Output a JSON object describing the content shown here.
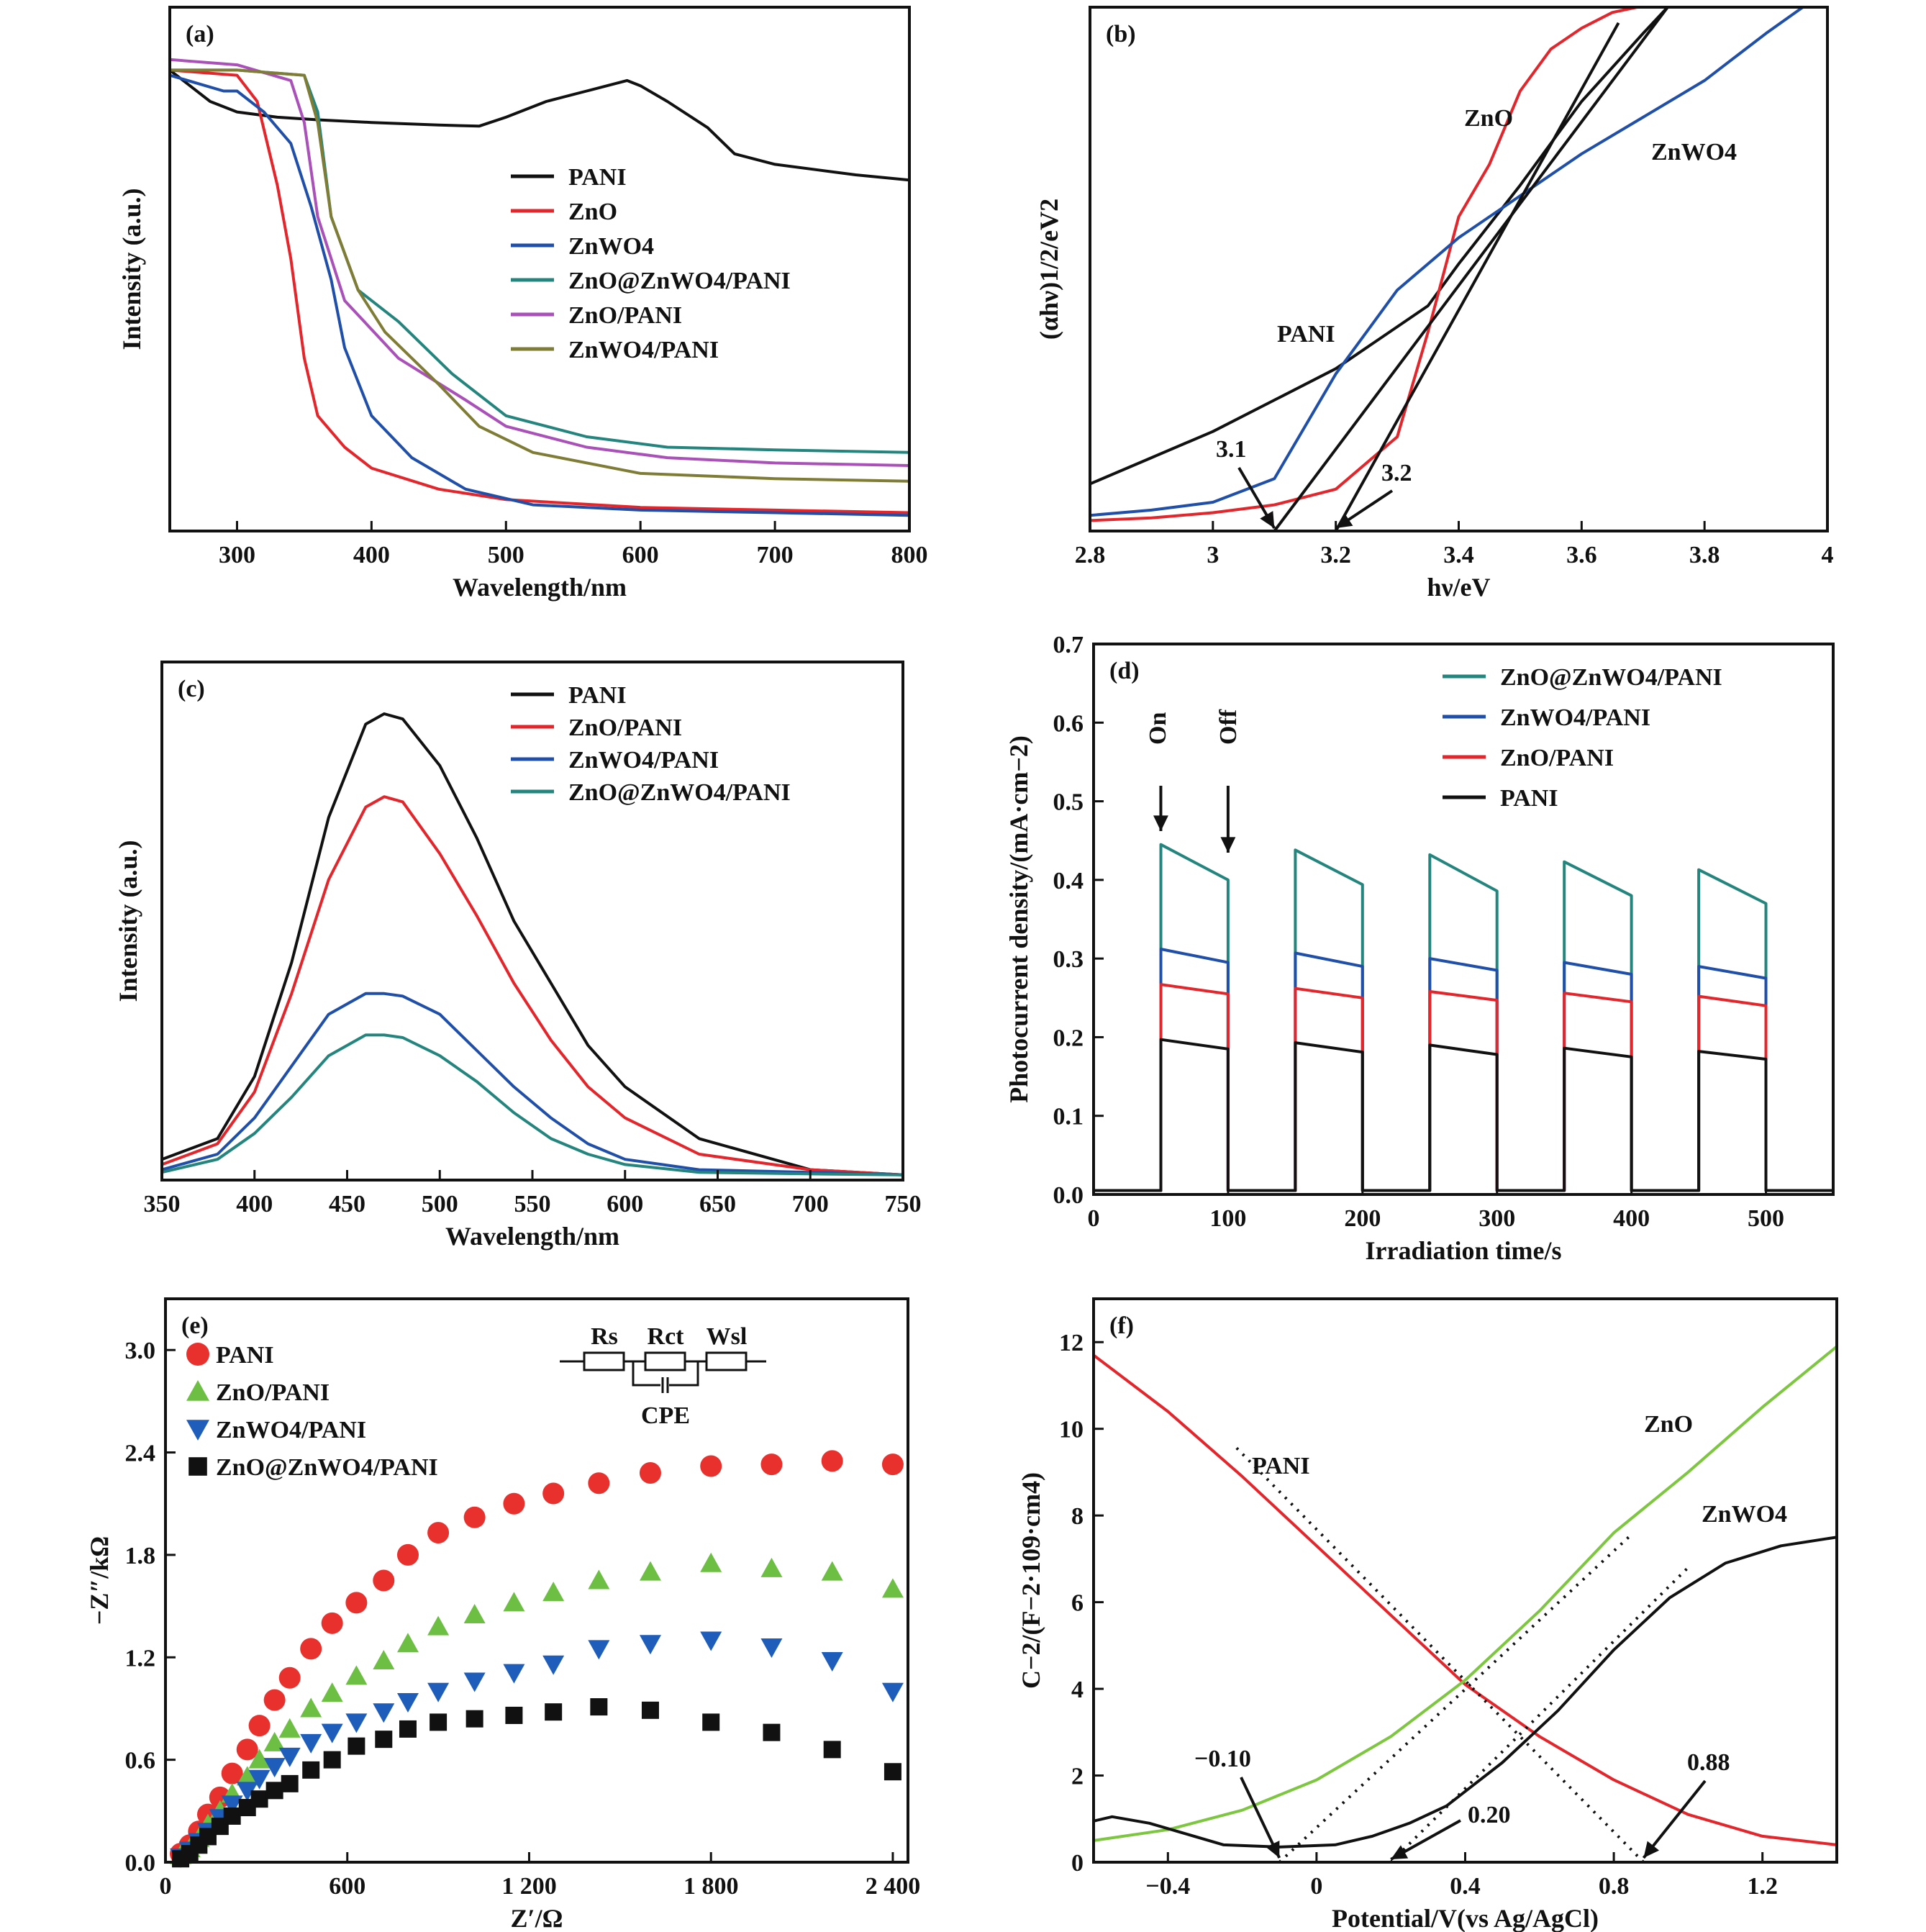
{
  "panels": {
    "a": {
      "label": "(a)",
      "xlabel": "Wavelength/nm",
      "ylabel": "Intensity (a.u.)"
    },
    "b": {
      "label": "(b)",
      "xlabel": "hν/eV",
      "ylabel": "(αhν)1/2/eV2",
      "annotations": [
        "ZnO",
        "ZnWO4",
        "PANI",
        "3.1",
        "3.2"
      ]
    },
    "c": {
      "label": "(c)",
      "xlabel": "Wavelength/nm",
      "ylabel": "Intensity (a.u.)"
    },
    "d": {
      "label": "(d)",
      "xlabel": "Irradiation time/s",
      "ylabel": "Photocurrent density/(mA·cm−2)",
      "annotations": [
        "On",
        "Off"
      ]
    },
    "e": {
      "label": "(e)",
      "xlabel": "Z′/Ω",
      "ylabel": "−Z″/kΩ",
      "circuit": [
        "Rs",
        "Rct",
        "Wsl",
        "CPE"
      ]
    },
    "f": {
      "label": "(f)",
      "xlabel": "Potential/V(vs Ag/AgCl)",
      "ylabel": "C−2/(F−2·109·cm4)",
      "annotations": [
        "PANI",
        "ZnO",
        "ZnWO4",
        "−0.10",
        "0.20",
        "0.88"
      ]
    }
  },
  "chart_data": [
    {
      "panel": "a",
      "type": "line",
      "xlim": [
        250,
        800
      ],
      "ylim": [
        0,
        1
      ],
      "xticks": [
        300,
        400,
        500,
        600,
        700,
        800
      ],
      "legend_position": "center-right",
      "series": [
        {
          "name": "PANI",
          "color": "#111111",
          "x": [
            250,
            260,
            280,
            300,
            330,
            360,
            400,
            450,
            480,
            500,
            530,
            560,
            590,
            600,
            620,
            650,
            670,
            700,
            730,
            760,
            800
          ],
          "y": [
            0.88,
            0.86,
            0.82,
            0.8,
            0.79,
            0.785,
            0.78,
            0.775,
            0.773,
            0.79,
            0.82,
            0.84,
            0.86,
            0.85,
            0.82,
            0.77,
            0.72,
            0.7,
            0.69,
            0.68,
            0.67
          ]
        },
        {
          "name": "ZnO",
          "color": "#e3262b",
          "x": [
            250,
            300,
            315,
            330,
            340,
            350,
            360,
            380,
            400,
            450,
            500,
            600,
            700,
            800
          ],
          "y": [
            0.88,
            0.87,
            0.82,
            0.66,
            0.52,
            0.33,
            0.22,
            0.16,
            0.12,
            0.08,
            0.06,
            0.045,
            0.04,
            0.035
          ]
        },
        {
          "name": "ZnWO4",
          "color": "#1f4fa8",
          "x": [
            250,
            290,
            300,
            320,
            340,
            355,
            370,
            380,
            400,
            430,
            470,
            520,
            600,
            700,
            800
          ],
          "y": [
            0.87,
            0.84,
            0.84,
            0.8,
            0.74,
            0.62,
            0.48,
            0.35,
            0.22,
            0.14,
            0.08,
            0.05,
            0.04,
            0.035,
            0.03
          ]
        },
        {
          "name": "ZnO@ZnWO4/PANI",
          "color": "#23857d",
          "x": [
            250,
            300,
            350,
            360,
            370,
            390,
            420,
            460,
            500,
            560,
            620,
            700,
            800
          ],
          "y": [
            0.88,
            0.88,
            0.87,
            0.8,
            0.6,
            0.46,
            0.4,
            0.3,
            0.22,
            0.18,
            0.16,
            0.155,
            0.15
          ]
        },
        {
          "name": "ZnO/PANI",
          "color": "#a951b8",
          "x": [
            250,
            300,
            340,
            350,
            360,
            380,
            420,
            470,
            500,
            560,
            620,
            700,
            800
          ],
          "y": [
            0.9,
            0.89,
            0.86,
            0.78,
            0.6,
            0.44,
            0.33,
            0.25,
            0.2,
            0.16,
            0.14,
            0.13,
            0.125
          ]
        },
        {
          "name": "ZnWO4/PANI",
          "color": "#7f7c35",
          "x": [
            250,
            300,
            350,
            360,
            370,
            390,
            410,
            450,
            480,
            520,
            600,
            700,
            800
          ],
          "y": [
            0.88,
            0.88,
            0.87,
            0.78,
            0.6,
            0.46,
            0.38,
            0.28,
            0.2,
            0.15,
            0.11,
            0.1,
            0.095
          ]
        }
      ]
    },
    {
      "panel": "b",
      "type": "line",
      "xlim": [
        2.8,
        4.0
      ],
      "ylim": [
        0,
        1
      ],
      "xticks": [
        2.8,
        3.0,
        3.2,
        3.4,
        3.6,
        3.8,
        4.0
      ],
      "series": [
        {
          "name": "PANI",
          "color": "#111111",
          "x": [
            2.8,
            2.9,
            3.0,
            3.1,
            3.2,
            3.3,
            3.35,
            3.4,
            3.5,
            3.6,
            3.7,
            3.74
          ],
          "y": [
            0.09,
            0.14,
            0.19,
            0.25,
            0.31,
            0.39,
            0.43,
            0.51,
            0.66,
            0.82,
            0.95,
            1.0
          ]
        },
        {
          "name": "ZnO",
          "color": "#e3262b",
          "x": [
            2.8,
            2.9,
            3.0,
            3.1,
            3.2,
            3.3,
            3.35,
            3.4,
            3.45,
            3.5,
            3.55,
            3.6,
            3.65,
            3.69
          ],
          "y": [
            0.02,
            0.025,
            0.035,
            0.05,
            0.08,
            0.18,
            0.38,
            0.6,
            0.7,
            0.84,
            0.92,
            0.96,
            0.99,
            1.0
          ]
        },
        {
          "name": "ZnWO4",
          "color": "#1f4fa8",
          "x": [
            2.8,
            2.9,
            3.0,
            3.1,
            3.2,
            3.3,
            3.4,
            3.5,
            3.6,
            3.7,
            3.8,
            3.9,
            3.96
          ],
          "y": [
            0.03,
            0.04,
            0.055,
            0.1,
            0.3,
            0.46,
            0.56,
            0.64,
            0.72,
            0.79,
            0.86,
            0.95,
            1.0
          ]
        }
      ]
    },
    {
      "panel": "c",
      "type": "line",
      "xlim": [
        350,
        750
      ],
      "ylim": [
        0,
        1
      ],
      "xticks": [
        350,
        400,
        450,
        500,
        550,
        600,
        650,
        700,
        750
      ],
      "legend_position": "top-right",
      "series": [
        {
          "name": "PANI",
          "color": "#111111",
          "x": [
            350,
            380,
            400,
            420,
            440,
            460,
            470,
            480,
            500,
            520,
            540,
            560,
            580,
            600,
            640,
            680,
            700,
            750
          ],
          "y": [
            0.04,
            0.08,
            0.2,
            0.42,
            0.7,
            0.88,
            0.9,
            0.89,
            0.8,
            0.66,
            0.5,
            0.38,
            0.26,
            0.18,
            0.08,
            0.04,
            0.02,
            0.01
          ]
        },
        {
          "name": "ZnO/PANI",
          "color": "#e3262b",
          "x": [
            350,
            380,
            400,
            420,
            440,
            460,
            470,
            480,
            500,
            520,
            540,
            560,
            580,
            600,
            640,
            680,
            700,
            750
          ],
          "y": [
            0.03,
            0.07,
            0.17,
            0.36,
            0.58,
            0.72,
            0.74,
            0.73,
            0.63,
            0.51,
            0.38,
            0.27,
            0.18,
            0.12,
            0.05,
            0.03,
            0.02,
            0.01
          ]
        },
        {
          "name": "ZnWO4/PANI",
          "color": "#1f4fa8",
          "x": [
            350,
            380,
            400,
            420,
            440,
            460,
            470,
            480,
            500,
            520,
            540,
            560,
            580,
            600,
            640,
            700,
            750
          ],
          "y": [
            0.02,
            0.05,
            0.12,
            0.22,
            0.32,
            0.36,
            0.36,
            0.355,
            0.32,
            0.25,
            0.18,
            0.12,
            0.07,
            0.04,
            0.02,
            0.015,
            0.01
          ]
        },
        {
          "name": "ZnO@ZnWO4/PANI",
          "color": "#23857d",
          "x": [
            350,
            380,
            400,
            420,
            440,
            460,
            470,
            480,
            500,
            520,
            540,
            560,
            580,
            600,
            640,
            700,
            750
          ],
          "y": [
            0.015,
            0.04,
            0.09,
            0.16,
            0.24,
            0.28,
            0.28,
            0.275,
            0.24,
            0.19,
            0.13,
            0.08,
            0.05,
            0.03,
            0.015,
            0.012,
            0.01
          ]
        }
      ]
    },
    {
      "panel": "d",
      "type": "line",
      "xlim": [
        0,
        550
      ],
      "ylim": [
        0,
        0.7
      ],
      "xticks": [
        0,
        100,
        200,
        300,
        400,
        500
      ],
      "yticks": [
        0,
        0.1,
        0.2,
        0.3,
        0.4,
        0.5,
        0.6,
        0.7
      ],
      "legend_position": "top-right",
      "on_intervals": [
        [
          50,
          100
        ],
        [
          150,
          200
        ],
        [
          250,
          300
        ],
        [
          350,
          400
        ],
        [
          450,
          500
        ]
      ],
      "series": [
        {
          "name": "ZnO@ZnWO4/PANI",
          "color": "#23857d",
          "peak": [
            0.445,
            0.438,
            0.432,
            0.423,
            0.413
          ],
          "end": [
            0.4,
            0.394,
            0.386,
            0.38,
            0.37
          ],
          "dark": 0.005
        },
        {
          "name": "ZnWO4/PANI",
          "color": "#1f4fa8",
          "peak": [
            0.312,
            0.307,
            0.3,
            0.295,
            0.29
          ],
          "end": [
            0.295,
            0.29,
            0.285,
            0.28,
            0.275
          ],
          "dark": 0.005
        },
        {
          "name": "ZnO/PANI",
          "color": "#e3262b",
          "peak": [
            0.267,
            0.262,
            0.258,
            0.256,
            0.252
          ],
          "end": [
            0.255,
            0.25,
            0.247,
            0.245,
            0.24
          ],
          "dark": 0.005
        },
        {
          "name": "PANI",
          "color": "#111111",
          "peak": [
            0.197,
            0.193,
            0.19,
            0.186,
            0.182
          ],
          "end": [
            0.185,
            0.181,
            0.178,
            0.175,
            0.172
          ],
          "dark": 0.005
        }
      ]
    },
    {
      "panel": "e",
      "type": "scatter",
      "xlim": [
        0,
        2450
      ],
      "ylim": [
        0,
        3.3
      ],
      "xticks": [
        0,
        600,
        1200,
        1800,
        2400
      ],
      "xticklabels": [
        "0",
        "600",
        "1 200",
        "1 800",
        "2 400"
      ],
      "yticks": [
        0,
        0.6,
        1.2,
        1.8,
        2.4,
        3.0
      ],
      "legend_position": "top-left",
      "series": [
        {
          "name": "PANI",
          "marker": "circle",
          "color": "#e8302c",
          "x": [
            50,
            80,
            110,
            140,
            180,
            220,
            270,
            310,
            360,
            410,
            480,
            550,
            630,
            720,
            800,
            900,
            1020,
            1150,
            1280,
            1430,
            1600,
            1800,
            2000,
            2200,
            2400
          ],
          "y": [
            0.05,
            0.1,
            0.18,
            0.28,
            0.38,
            0.52,
            0.66,
            0.8,
            0.95,
            1.08,
            1.25,
            1.4,
            1.52,
            1.65,
            1.8,
            1.93,
            2.02,
            2.1,
            2.16,
            2.22,
            2.28,
            2.32,
            2.33,
            2.35,
            2.33
          ]
        },
        {
          "name": "ZnO/PANI",
          "marker": "triangle-up",
          "color": "#6dbf44",
          "x": [
            50,
            80,
            110,
            140,
            180,
            220,
            270,
            310,
            360,
            410,
            480,
            550,
            630,
            720,
            800,
            900,
            1020,
            1150,
            1280,
            1430,
            1600,
            1800,
            2000,
            2200,
            2400
          ],
          "y": [
            0.04,
            0.08,
            0.14,
            0.22,
            0.3,
            0.4,
            0.5,
            0.6,
            0.7,
            0.78,
            0.9,
            0.99,
            1.09,
            1.18,
            1.28,
            1.38,
            1.45,
            1.52,
            1.58,
            1.65,
            1.7,
            1.75,
            1.72,
            1.7,
            1.6
          ]
        },
        {
          "name": "ZnWO4/PANI",
          "marker": "triangle-down",
          "color": "#1f5dbb",
          "x": [
            50,
            80,
            110,
            140,
            180,
            220,
            270,
            310,
            360,
            410,
            480,
            550,
            630,
            720,
            800,
            900,
            1020,
            1150,
            1280,
            1430,
            1600,
            1800,
            2000,
            2200,
            2400
          ],
          "y": [
            0.03,
            0.07,
            0.12,
            0.18,
            0.26,
            0.34,
            0.42,
            0.49,
            0.56,
            0.62,
            0.7,
            0.76,
            0.82,
            0.88,
            0.94,
            1.0,
            1.06,
            1.11,
            1.16,
            1.25,
            1.28,
            1.3,
            1.26,
            1.18,
            1.0
          ]
        },
        {
          "name": "ZnO@ZnWO4/PANI",
          "marker": "square",
          "color": "#111111",
          "x": [
            50,
            80,
            110,
            140,
            180,
            220,
            270,
            310,
            360,
            410,
            480,
            550,
            630,
            720,
            800,
            900,
            1020,
            1150,
            1280,
            1430,
            1600,
            1800,
            2000,
            2200,
            2400
          ],
          "y": [
            0.02,
            0.05,
            0.1,
            0.15,
            0.21,
            0.27,
            0.32,
            0.37,
            0.42,
            0.46,
            0.54,
            0.6,
            0.68,
            0.72,
            0.78,
            0.82,
            0.84,
            0.86,
            0.88,
            0.91,
            0.89,
            0.82,
            0.76,
            0.66,
            0.53
          ]
        }
      ]
    },
    {
      "panel": "f",
      "type": "line",
      "xlim": [
        -0.6,
        1.4
      ],
      "ylim": [
        0,
        13
      ],
      "xticks": [
        -0.4,
        0,
        0.4,
        0.8,
        1.2
      ],
      "yticks": [
        0,
        2,
        4,
        6,
        8,
        10,
        12
      ],
      "series": [
        {
          "name": "PANI",
          "color": "#e3262b",
          "x": [
            -0.6,
            -0.4,
            -0.2,
            0,
            0.2,
            0.4,
            0.6,
            0.8,
            1.0,
            1.2,
            1.4
          ],
          "y": [
            11.7,
            10.4,
            8.9,
            7.3,
            5.7,
            4.1,
            2.9,
            1.9,
            1.1,
            0.6,
            0.4
          ]
        },
        {
          "name": "ZnO",
          "color": "#7dc63f",
          "x": [
            -0.6,
            -0.4,
            -0.2,
            0,
            0.2,
            0.4,
            0.6,
            0.8,
            1.0,
            1.2,
            1.4
          ],
          "y": [
            0.5,
            0.75,
            1.2,
            1.9,
            2.9,
            4.2,
            5.8,
            7.6,
            9.0,
            10.5,
            11.9
          ]
        },
        {
          "name": "ZnWO4",
          "color": "#111111",
          "x": [
            -0.6,
            -0.55,
            -0.45,
            -0.35,
            -0.25,
            -0.1,
            0.05,
            0.15,
            0.25,
            0.35,
            0.5,
            0.65,
            0.8,
            0.95,
            1.1,
            1.25,
            1.4
          ],
          "y": [
            0.95,
            1.05,
            0.9,
            0.65,
            0.4,
            0.35,
            0.4,
            0.6,
            0.9,
            1.3,
            2.3,
            3.5,
            4.9,
            6.1,
            6.9,
            7.3,
            7.5
          ]
        }
      ]
    }
  ]
}
